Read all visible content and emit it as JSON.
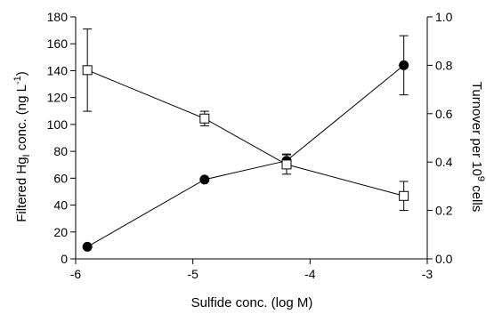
{
  "chart_data": {
    "type": "line",
    "xlabel": "Sulfide conc. (log M)",
    "ylabel_left": {
      "prefix": "Filtered Hg",
      "sub": "I",
      "mid": " conc. (ng L",
      "sup": "-1",
      "suffix": ")"
    },
    "ylabel_right": {
      "prefix": "Turnover per 10",
      "sup": "9",
      "suffix": " cells"
    },
    "xlim": [
      -6,
      -3
    ],
    "ylim_left": [
      0,
      180
    ],
    "ylim_right": [
      0.0,
      1.0
    ],
    "x_ticks": [
      "-6",
      "-5",
      "-4",
      "-3"
    ],
    "y_left_ticks": [
      "0",
      "20",
      "40",
      "60",
      "80",
      "100",
      "120",
      "140",
      "160",
      "180"
    ],
    "y_right_ticks": [
      "0.0",
      "0.2",
      "0.4",
      "0.6",
      "0.8",
      "1.0"
    ],
    "grid": false,
    "series": [
      {
        "marker": "filled-circle",
        "axis": "left",
        "x": [
          -5.9,
          -4.9,
          -4.2,
          -3.2
        ],
        "y": [
          9,
          59,
          73,
          144
        ],
        "err": [
          0,
          0,
          5,
          22
        ]
      },
      {
        "marker": "open-square",
        "axis": "right",
        "x": [
          -5.9,
          -4.9,
          -4.2,
          -3.2
        ],
        "y": [
          0.78,
          0.58,
          0.39,
          0.26
        ],
        "err": [
          0.17,
          0.03,
          0.04,
          0.06
        ]
      }
    ]
  }
}
